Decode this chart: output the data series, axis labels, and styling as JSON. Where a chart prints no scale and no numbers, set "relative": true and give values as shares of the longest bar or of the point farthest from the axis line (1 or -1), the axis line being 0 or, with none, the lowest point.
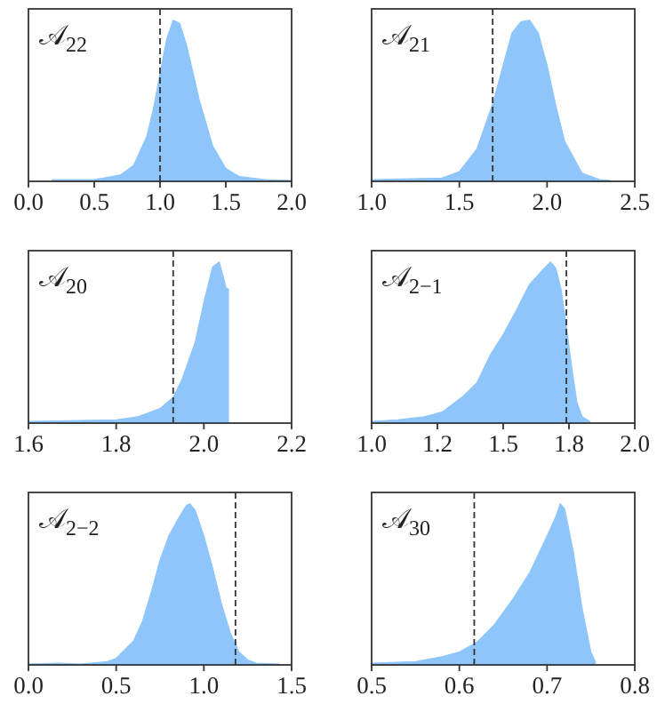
{
  "chart_data": [
    {
      "type": "area",
      "relative": true,
      "annotations": [
        "𝒜$_{22}$"
      ],
      "xlim": [
        0.0,
        2.0
      ],
      "xticks": [
        {
          "value": 0.0,
          "label": "0.0"
        },
        0.5,
        {
          "value": 1.0,
          "label": "1.0"
        },
        1.5,
        {
          "value": 2.0,
          "label": "2.0"
        }
      ],
      "x": [
        0.18,
        0.5,
        0.7,
        0.8,
        0.9,
        0.95,
        1.0,
        1.05,
        1.1,
        1.15,
        1.2,
        1.3,
        1.4,
        1.5,
        1.6,
        1.8,
        2.0
      ],
      "series": [
        {
          "color": "#8ec5fb",
          "values": [
            0.01,
            0.01,
            0.04,
            0.1,
            0.28,
            0.45,
            0.67,
            0.88,
            1.0,
            0.98,
            0.85,
            0.5,
            0.22,
            0.08,
            0.03,
            0.01,
            0.005
          ]
        }
      ],
      "ref_lines": [
        {
          "axis": "x",
          "value": 1.0,
          "color": "#333333",
          "line_style": "dashed"
        }
      ]
    },
    {
      "type": "area",
      "relative": true,
      "annotations": [
        "𝒜$_{21}$"
      ],
      "xlim": [
        1.0,
        2.5
      ],
      "xticks": [
        {
          "value": 1.0,
          "label": "1.0"
        },
        1.5,
        {
          "value": 2.0,
          "label": "2.0"
        },
        2.5
      ],
      "x": [
        1.0,
        1.4,
        1.5,
        1.6,
        1.69,
        1.75,
        1.8,
        1.85,
        1.9,
        1.95,
        2.0,
        2.05,
        2.1,
        2.2,
        2.3,
        2.36
      ],
      "series": [
        {
          "color": "#8ec5fb",
          "values": [
            0.01,
            0.02,
            0.06,
            0.2,
            0.48,
            0.72,
            0.92,
            0.99,
            1.0,
            0.92,
            0.72,
            0.47,
            0.25,
            0.05,
            0.01,
            0.005
          ]
        }
      ],
      "ref_lines": [
        {
          "axis": "x",
          "value": 1.69,
          "color": "#333333",
          "line_style": "dashed"
        }
      ]
    },
    {
      "type": "area",
      "relative": true,
      "annotations": [
        "𝒜$_{20}$"
      ],
      "xlim": [
        1.6,
        2.2
      ],
      "xticks": [
        1.6,
        1.8,
        {
          "value": 2.0,
          "label": "2.0"
        },
        2.2
      ],
      "x": [
        1.6,
        1.8,
        1.85,
        1.9,
        1.93,
        1.95,
        1.98,
        2.0,
        2.02,
        2.035,
        2.045,
        2.05,
        2.056
      ],
      "series": [
        {
          "color": "#8ec5fb",
          "values": [
            0.01,
            0.02,
            0.04,
            0.09,
            0.16,
            0.27,
            0.5,
            0.75,
            0.97,
            1.0,
            0.9,
            0.84,
            0.83
          ]
        }
      ],
      "ref_lines": [
        {
          "axis": "x",
          "value": 1.93,
          "color": "#333333",
          "line_style": "dashed"
        }
      ]
    },
    {
      "type": "area",
      "relative": true,
      "annotations": [
        "𝒜$_{2−1}$"
      ],
      "xlim": [
        1.0,
        2.0
      ],
      "xticks": [
        {
          "value": 1.0,
          "label": "1.0"
        },
        {
          "value": 1.25,
          "label": "1.2"
        },
        1.5,
        {
          "value": 1.75,
          "label": "1.8"
        },
        {
          "value": 2.0,
          "label": "2.0"
        }
      ],
      "x": [
        1.0,
        1.1,
        1.2,
        1.27,
        1.35,
        1.4,
        1.45,
        1.5,
        1.55,
        1.6,
        1.65,
        1.68,
        1.7,
        1.72,
        1.74,
        1.76,
        1.78,
        1.8,
        1.83
      ],
      "series": [
        {
          "color": "#8ec5fb",
          "values": [
            0.01,
            0.02,
            0.04,
            0.07,
            0.17,
            0.25,
            0.42,
            0.55,
            0.7,
            0.86,
            0.95,
            1.0,
            0.96,
            0.83,
            0.6,
            0.35,
            0.13,
            0.04,
            0.01
          ]
        }
      ],
      "ref_lines": [
        {
          "axis": "x",
          "value": 1.74,
          "color": "#333333",
          "line_style": "dashed"
        }
      ]
    },
    {
      "type": "area",
      "relative": true,
      "annotations": [
        "𝒜$_{2−2}$"
      ],
      "xlim": [
        0.0,
        1.5
      ],
      "xticks": [
        {
          "value": 0.0,
          "label": "0.0"
        },
        0.5,
        {
          "value": 1.0,
          "label": "1.0"
        },
        1.5
      ],
      "x": [
        0.0,
        0.17,
        0.3,
        0.45,
        0.5,
        0.6,
        0.65,
        0.7,
        0.75,
        0.8,
        0.85,
        0.9,
        0.92,
        0.95,
        1.0,
        1.05,
        1.1,
        1.15,
        1.2,
        1.25,
        1.3,
        1.43
      ],
      "series": [
        {
          "color": "#8ec5fb",
          "values": [
            0.005,
            0.01,
            0.005,
            0.02,
            0.04,
            0.15,
            0.27,
            0.45,
            0.65,
            0.8,
            0.9,
            0.99,
            1.0,
            0.96,
            0.8,
            0.6,
            0.38,
            0.2,
            0.08,
            0.03,
            0.01,
            0.005
          ]
        }
      ],
      "ref_lines": [
        {
          "axis": "x",
          "value": 1.18,
          "color": "#333333",
          "line_style": "dashed"
        }
      ]
    },
    {
      "type": "area",
      "relative": true,
      "annotations": [
        "𝒜$_{30}$"
      ],
      "xlim": [
        0.5,
        0.8
      ],
      "xticks": [
        0.5,
        0.6,
        0.7,
        0.8
      ],
      "x": [
        0.5,
        0.55,
        0.58,
        0.6,
        0.62,
        0.64,
        0.66,
        0.68,
        0.7,
        0.71,
        0.715,
        0.72,
        0.73,
        0.74,
        0.75,
        0.755
      ],
      "series": [
        {
          "color": "#8ec5fb",
          "values": [
            0.01,
            0.02,
            0.05,
            0.08,
            0.14,
            0.25,
            0.4,
            0.57,
            0.8,
            0.92,
            1.0,
            0.97,
            0.7,
            0.35,
            0.08,
            0.02
          ]
        }
      ],
      "ref_lines": [
        {
          "axis": "x",
          "value": 0.617,
          "color": "#333333",
          "line_style": "dashed"
        }
      ]
    }
  ]
}
